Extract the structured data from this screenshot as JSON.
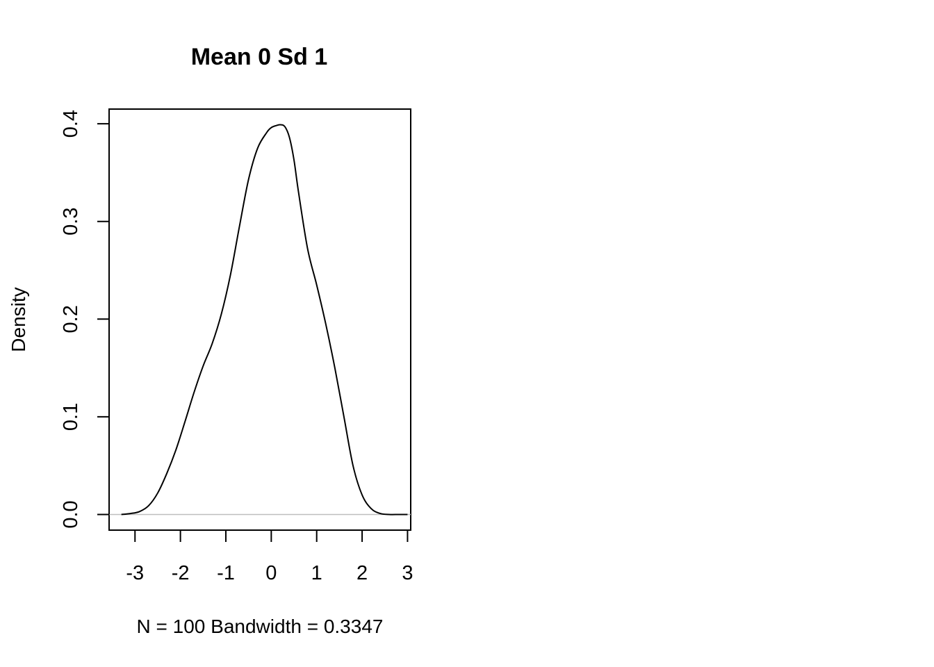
{
  "chart_data": {
    "type": "line",
    "title": "Mean 0 Sd 1",
    "xlabel": "N = 100   Bandwidth = 0.3347",
    "ylabel": "Density",
    "xlim": [
      -3.57,
      3.07
    ],
    "ylim": [
      -0.016,
      0.415
    ],
    "x_ticks": [
      -3,
      -2,
      -1,
      0,
      1,
      2,
      3
    ],
    "x_tick_labels": [
      "-3",
      "-2",
      "-1",
      "0",
      "1",
      "2",
      "3"
    ],
    "y_ticks": [
      0.0,
      0.1,
      0.2,
      0.3,
      0.4
    ],
    "y_tick_labels": [
      "0.0",
      "0.1",
      "0.2",
      "0.3",
      "0.4"
    ],
    "grid": false,
    "zero_line": {
      "y": 0,
      "color": "#bebebe"
    },
    "series": [
      {
        "color": "#000000",
        "x": [
          -3.3,
          -3.1,
          -2.9,
          -2.7,
          -2.5,
          -2.3,
          -2.1,
          -1.9,
          -1.7,
          -1.5,
          -1.3,
          -1.1,
          -0.9,
          -0.7,
          -0.5,
          -0.3,
          -0.1,
          0.0,
          0.1,
          0.2,
          0.3,
          0.4,
          0.5,
          0.6,
          0.8,
          1.0,
          1.2,
          1.4,
          1.6,
          1.8,
          2.0,
          2.2,
          2.4,
          2.6,
          2.8,
          3.0
        ],
        "y": [
          0.0,
          0.001,
          0.003,
          0.009,
          0.022,
          0.042,
          0.066,
          0.095,
          0.125,
          0.152,
          0.175,
          0.205,
          0.245,
          0.295,
          0.343,
          0.375,
          0.391,
          0.396,
          0.398,
          0.399,
          0.397,
          0.386,
          0.363,
          0.33,
          0.272,
          0.235,
          0.195,
          0.15,
          0.1,
          0.05,
          0.02,
          0.006,
          0.001,
          0.0,
          0.0,
          0.0
        ]
      }
    ]
  }
}
